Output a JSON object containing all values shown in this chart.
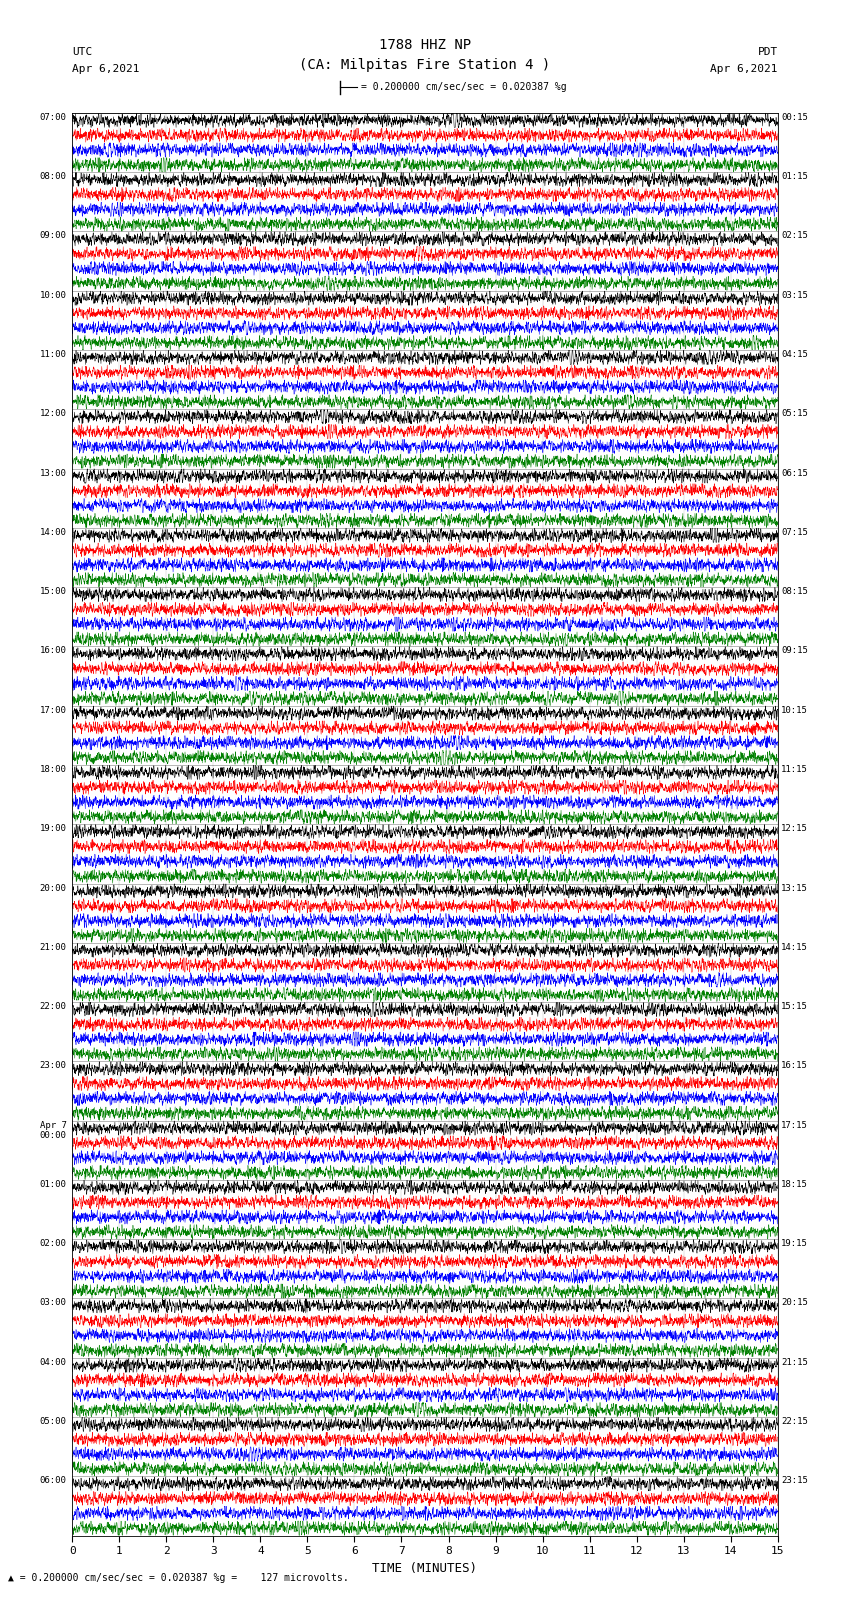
{
  "title_line1": "1788 HHZ NP",
  "title_line2": "(CA: Milpitas Fire Station 4 )",
  "utc_label": "UTC",
  "pdt_label": "PDT",
  "date_left": "Apr 6,2021",
  "date_right": "Apr 6,2021",
  "scale_text": "= 0.200000 cm/sec/sec = 0.020387 %g",
  "footer_text": "= 0.200000 cm/sec/sec = 0.020387 %g =    127 microvolts.",
  "xlabel": "TIME (MINUTES)",
  "xmin": 0,
  "xmax": 15,
  "xticks": [
    0,
    1,
    2,
    3,
    4,
    5,
    6,
    7,
    8,
    9,
    10,
    11,
    12,
    13,
    14,
    15
  ],
  "colors": [
    "black",
    "red",
    "blue",
    "green"
  ],
  "hour_labels_utc": [
    "07:00",
    "08:00",
    "09:00",
    "10:00",
    "11:00",
    "12:00",
    "13:00",
    "14:00",
    "15:00",
    "16:00",
    "17:00",
    "18:00",
    "19:00",
    "20:00",
    "21:00",
    "22:00",
    "23:00",
    "Apr 7\n00:00",
    "01:00",
    "02:00",
    "03:00",
    "04:00",
    "05:00",
    "06:00"
  ],
  "right_labels_pdt": [
    "00:15",
    "01:15",
    "02:15",
    "03:15",
    "04:15",
    "05:15",
    "06:15",
    "07:15",
    "08:15",
    "09:15",
    "10:15",
    "11:15",
    "12:15",
    "13:15",
    "14:15",
    "15:15",
    "16:15",
    "17:15",
    "18:15",
    "19:15",
    "20:15",
    "21:15",
    "22:15",
    "23:15"
  ],
  "n_rows": 96,
  "n_hours": 24,
  "rows_per_hour": 4,
  "bg_color": "#ffffff",
  "figwidth": 8.5,
  "figheight": 16.13,
  "dpi": 100,
  "noise_scale": 0.32,
  "spike_prob": 0.004,
  "spike_scale": 0.65,
  "lw": 0.35
}
